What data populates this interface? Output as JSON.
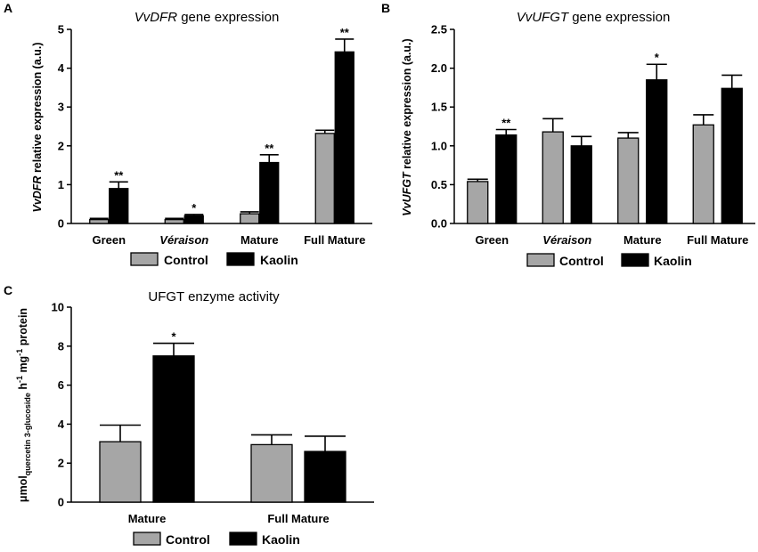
{
  "colors": {
    "control": "#a6a6a6",
    "kaolin": "#000000",
    "axis": "#000000"
  },
  "chart_data": [
    {
      "panel": "A",
      "type": "bar",
      "title_italic": "VvDFR",
      "title_rest": " gene expression",
      "ylabel_italic": "VvDFR",
      "ylabel_rest": " relative expression (a.u.)",
      "categories": [
        "Green",
        "Véraison",
        "Mature",
        "Full Mature"
      ],
      "category_italic": [
        false,
        true,
        false,
        false
      ],
      "ylim": [
        0,
        5
      ],
      "yticks": [
        "0",
        "1",
        "2",
        "3",
        "4",
        "5"
      ],
      "series": [
        {
          "name": "Control",
          "values": [
            0.1,
            0.1,
            0.25,
            2.32
          ],
          "errors": [
            0.03,
            0.03,
            0.05,
            0.08
          ]
        },
        {
          "name": "Kaolin",
          "values": [
            0.9,
            0.2,
            1.57,
            4.42
          ],
          "errors": [
            0.17,
            0.03,
            0.2,
            0.33
          ]
        }
      ],
      "significance": [
        "**",
        "*",
        "**",
        "**"
      ],
      "legend": [
        "Control",
        "Kaolin"
      ]
    },
    {
      "panel": "B",
      "type": "bar",
      "title_italic": "VvUFGT",
      "title_rest": " gene expression",
      "ylabel_italic": "VvUFGT",
      "ylabel_rest": " relative expression (a.u.)",
      "categories": [
        "Green",
        "Véraison",
        "Mature",
        "Full Mature"
      ],
      "category_italic": [
        false,
        true,
        false,
        false
      ],
      "ylim": [
        0,
        2.5
      ],
      "yticks": [
        "0.0",
        "0.5",
        "1.0",
        "1.5",
        "2.0",
        "2.5"
      ],
      "series": [
        {
          "name": "Control",
          "values": [
            0.54,
            1.18,
            1.1,
            1.27
          ],
          "errors": [
            0.03,
            0.17,
            0.07,
            0.13
          ]
        },
        {
          "name": "Kaolin",
          "values": [
            1.14,
            1.0,
            1.85,
            1.74
          ],
          "errors": [
            0.07,
            0.12,
            0.2,
            0.17
          ]
        }
      ],
      "significance": [
        "**",
        "",
        "*",
        ""
      ],
      "legend": [
        "Control",
        "Kaolin"
      ]
    },
    {
      "panel": "C",
      "type": "bar",
      "title_italic": "",
      "title_rest": "UFGT enzyme activity",
      "ylabel_parts": [
        "μmol",
        "quercetin 3-glucoside",
        "  h",
        "-1",
        " mg",
        "-1",
        " protein"
      ],
      "categories": [
        "Mature",
        "Full Mature"
      ],
      "category_italic": [
        false,
        false
      ],
      "ylim": [
        0,
        10
      ],
      "yticks": [
        "0",
        "2",
        "4",
        "6",
        "8",
        "10"
      ],
      "series": [
        {
          "name": "Control",
          "values": [
            3.1,
            2.95
          ],
          "errors": [
            0.85,
            0.5
          ]
        },
        {
          "name": "Kaolin",
          "values": [
            7.5,
            2.6
          ],
          "errors": [
            0.65,
            0.78
          ]
        }
      ],
      "significance": [
        "*",
        ""
      ],
      "legend": [
        "Control",
        "Kaolin"
      ]
    }
  ]
}
